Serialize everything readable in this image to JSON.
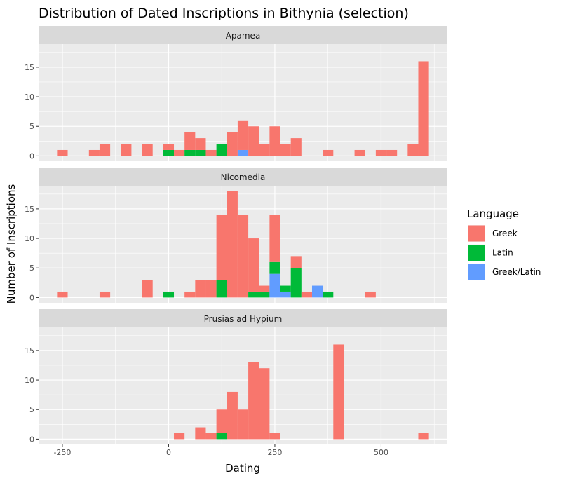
{
  "chart_data": {
    "type": "bar",
    "stacked": true,
    "title": "Distribution of Dated Inscriptions in Bithynia (selection)",
    "xlabel": "Dating",
    "ylabel": "Number of Inscriptions",
    "binwidth": 25,
    "xlim": [
      -306,
      656
    ],
    "ylim": [
      -0.9,
      18.9
    ],
    "x_ticks": [
      -250,
      0,
      250,
      500
    ],
    "y_ticks": [
      0,
      5,
      10,
      15
    ],
    "grid": true,
    "legend": {
      "title": "Language",
      "position": "right",
      "entries": [
        {
          "key": "Greek",
          "label": "Greek",
          "color": "#F8766D"
        },
        {
          "key": "Latin",
          "label": "Latin",
          "color": "#00BA38"
        },
        {
          "key": "GreekLatin",
          "label": "Greek/Latin",
          "color": "#619CFF"
        }
      ]
    },
    "stack_order_bottom_to_top": [
      "GreekLatin",
      "Latin",
      "Greek"
    ],
    "facets": [
      {
        "name": "Apamea",
        "bins": [
          {
            "x": -250,
            "Greek": 1,
            "Latin": 0,
            "GreekLatin": 0
          },
          {
            "x": -175,
            "Greek": 1,
            "Latin": 0,
            "GreekLatin": 0
          },
          {
            "x": -150,
            "Greek": 2,
            "Latin": 0,
            "GreekLatin": 0
          },
          {
            "x": -100,
            "Greek": 2,
            "Latin": 0,
            "GreekLatin": 0
          },
          {
            "x": -50,
            "Greek": 2,
            "Latin": 0,
            "GreekLatin": 0
          },
          {
            "x": 0,
            "Greek": 1,
            "Latin": 1,
            "GreekLatin": 0
          },
          {
            "x": 25,
            "Greek": 1,
            "Latin": 0,
            "GreekLatin": 0
          },
          {
            "x": 50,
            "Greek": 3,
            "Latin": 1,
            "GreekLatin": 0
          },
          {
            "x": 75,
            "Greek": 2,
            "Latin": 1,
            "GreekLatin": 0
          },
          {
            "x": 100,
            "Greek": 1,
            "Latin": 0,
            "GreekLatin": 0
          },
          {
            "x": 125,
            "Greek": 0,
            "Latin": 2,
            "GreekLatin": 0
          },
          {
            "x": 150,
            "Greek": 4,
            "Latin": 0,
            "GreekLatin": 0
          },
          {
            "x": 175,
            "Greek": 5,
            "Latin": 0,
            "GreekLatin": 1
          },
          {
            "x": 200,
            "Greek": 5,
            "Latin": 0,
            "GreekLatin": 0
          },
          {
            "x": 225,
            "Greek": 2,
            "Latin": 0,
            "GreekLatin": 0
          },
          {
            "x": 250,
            "Greek": 5,
            "Latin": 0,
            "GreekLatin": 0
          },
          {
            "x": 275,
            "Greek": 2,
            "Latin": 0,
            "GreekLatin": 0
          },
          {
            "x": 300,
            "Greek": 3,
            "Latin": 0,
            "GreekLatin": 0
          },
          {
            "x": 375,
            "Greek": 1,
            "Latin": 0,
            "GreekLatin": 0
          },
          {
            "x": 450,
            "Greek": 1,
            "Latin": 0,
            "GreekLatin": 0
          },
          {
            "x": 500,
            "Greek": 1,
            "Latin": 0,
            "GreekLatin": 0
          },
          {
            "x": 525,
            "Greek": 1,
            "Latin": 0,
            "GreekLatin": 0
          },
          {
            "x": 575,
            "Greek": 2,
            "Latin": 0,
            "GreekLatin": 0
          },
          {
            "x": 600,
            "Greek": 16,
            "Latin": 0,
            "GreekLatin": 0
          }
        ]
      },
      {
        "name": "Nicomedia",
        "bins": [
          {
            "x": -250,
            "Greek": 1,
            "Latin": 0,
            "GreekLatin": 0
          },
          {
            "x": -150,
            "Greek": 1,
            "Latin": 0,
            "GreekLatin": 0
          },
          {
            "x": -50,
            "Greek": 3,
            "Latin": 0,
            "GreekLatin": 0
          },
          {
            "x": 0,
            "Greek": 0,
            "Latin": 1,
            "GreekLatin": 0
          },
          {
            "x": 50,
            "Greek": 1,
            "Latin": 0,
            "GreekLatin": 0
          },
          {
            "x": 75,
            "Greek": 3,
            "Latin": 0,
            "GreekLatin": 0
          },
          {
            "x": 100,
            "Greek": 3,
            "Latin": 0,
            "GreekLatin": 0
          },
          {
            "x": 125,
            "Greek": 11,
            "Latin": 3,
            "GreekLatin": 0
          },
          {
            "x": 150,
            "Greek": 18,
            "Latin": 0,
            "GreekLatin": 0
          },
          {
            "x": 175,
            "Greek": 14,
            "Latin": 0,
            "GreekLatin": 0
          },
          {
            "x": 200,
            "Greek": 9,
            "Latin": 1,
            "GreekLatin": 0
          },
          {
            "x": 225,
            "Greek": 1,
            "Latin": 1,
            "GreekLatin": 0
          },
          {
            "x": 250,
            "Greek": 8,
            "Latin": 2,
            "GreekLatin": 4
          },
          {
            "x": 275,
            "Greek": 0,
            "Latin": 1,
            "GreekLatin": 1
          },
          {
            "x": 300,
            "Greek": 2,
            "Latin": 5,
            "GreekLatin": 0
          },
          {
            "x": 325,
            "Greek": 1,
            "Latin": 0,
            "GreekLatin": 0
          },
          {
            "x": 350,
            "Greek": 0,
            "Latin": 0,
            "GreekLatin": 2
          },
          {
            "x": 375,
            "Greek": 0,
            "Latin": 1,
            "GreekLatin": 0
          },
          {
            "x": 475,
            "Greek": 1,
            "Latin": 0,
            "GreekLatin": 0
          }
        ]
      },
      {
        "name": "Prusias ad Hypium",
        "bins": [
          {
            "x": 25,
            "Greek": 1,
            "Latin": 0,
            "GreekLatin": 0
          },
          {
            "x": 75,
            "Greek": 2,
            "Latin": 0,
            "GreekLatin": 0
          },
          {
            "x": 100,
            "Greek": 1,
            "Latin": 0,
            "GreekLatin": 0
          },
          {
            "x": 125,
            "Greek": 4,
            "Latin": 1,
            "GreekLatin": 0
          },
          {
            "x": 150,
            "Greek": 8,
            "Latin": 0,
            "GreekLatin": 0
          },
          {
            "x": 175,
            "Greek": 5,
            "Latin": 0,
            "GreekLatin": 0
          },
          {
            "x": 200,
            "Greek": 13,
            "Latin": 0,
            "GreekLatin": 0
          },
          {
            "x": 225,
            "Greek": 12,
            "Latin": 0,
            "GreekLatin": 0
          },
          {
            "x": 250,
            "Greek": 1,
            "Latin": 0,
            "GreekLatin": 0
          },
          {
            "x": 400,
            "Greek": 16,
            "Latin": 0,
            "GreekLatin": 0
          },
          {
            "x": 600,
            "Greek": 1,
            "Latin": 0,
            "GreekLatin": 0
          }
        ]
      }
    ]
  }
}
